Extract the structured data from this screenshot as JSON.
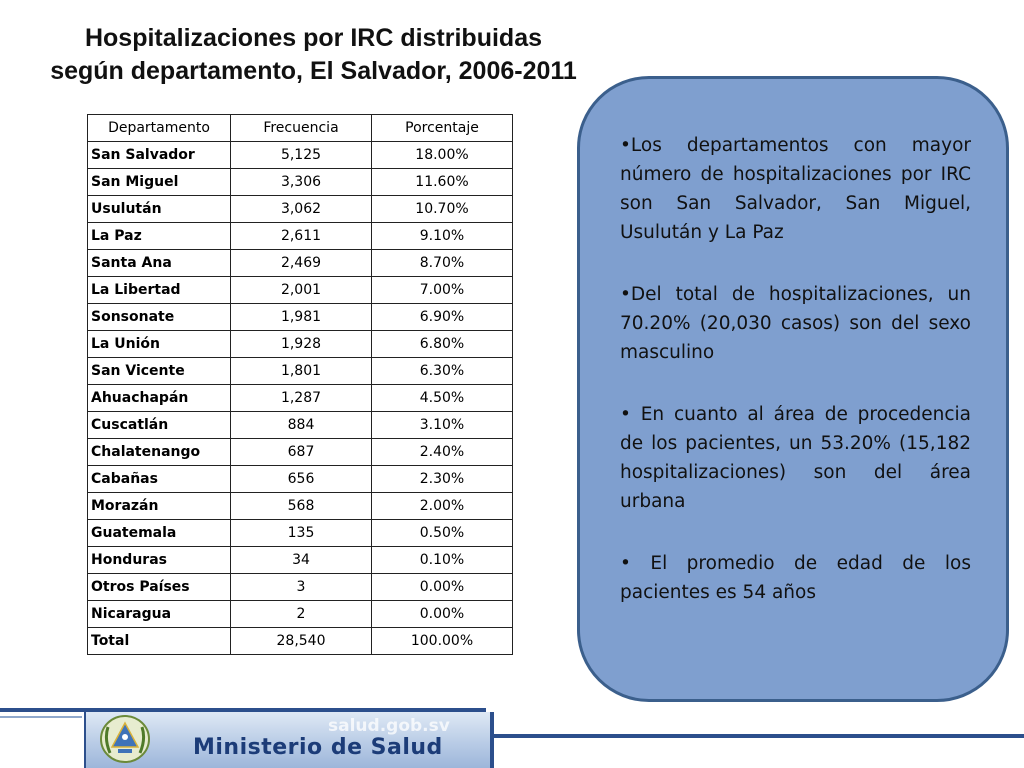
{
  "title": {
    "line1": "Hospitalizaciones por IRC distribuidas",
    "line2": "según departamento, El Salvador, 2006-2011"
  },
  "table": {
    "headers": [
      "Departamento",
      "Frecuencia",
      "Porcentaje"
    ],
    "rows": [
      [
        "San Salvador",
        "5,125",
        "18.00%"
      ],
      [
        "San Miguel",
        "3,306",
        "11.60%"
      ],
      [
        "Usulután",
        "3,062",
        "10.70%"
      ],
      [
        "La Paz",
        "2,611",
        "9.10%"
      ],
      [
        "Santa Ana",
        "2,469",
        "8.70%"
      ],
      [
        "La Libertad",
        "2,001",
        "7.00%"
      ],
      [
        "Sonsonate",
        "1,981",
        "6.90%"
      ],
      [
        "La Unión",
        "1,928",
        "6.80%"
      ],
      [
        "San Vicente",
        "1,801",
        "6.30%"
      ],
      [
        "Ahuachapán",
        "1,287",
        "4.50%"
      ],
      [
        "Cuscatlán",
        "884",
        "3.10%"
      ],
      [
        "Chalatenango",
        "687",
        "2.40%"
      ],
      [
        "Cabañas",
        "656",
        "2.30%"
      ],
      [
        "Morazán",
        "568",
        "2.00%"
      ],
      [
        "Guatemala",
        "135",
        "0.50%"
      ],
      [
        "Honduras",
        "34",
        "0.10%"
      ],
      [
        "Otros Países",
        "3",
        "0.00%"
      ],
      [
        "Nicaragua",
        "2",
        "0.00%"
      ],
      [
        "Total",
        "28,540",
        "100.00%"
      ]
    ]
  },
  "notes": [
    "•Los departamentos con mayor número de hospitalizaciones por IRC son San Salvador, San Miguel, Usulután y La Paz",
    "•Del total de hospitalizaciones, un 70.20% (20,030 casos) son del sexo masculino",
    "• En cuanto al área de procedencia de los pacientes, un 53.20% (15,182 hospitalizaciones) son del área urbana",
    "• El promedio de edad de los pacientes es 54 años"
  ],
  "footer": {
    "ministry": "Ministerio de Salud",
    "site": "salud.gob.sv"
  },
  "colors": {
    "note_fill": "#7f9fcf",
    "note_border": "#3b5f8c",
    "footer_blue": "#2c4f8c"
  }
}
